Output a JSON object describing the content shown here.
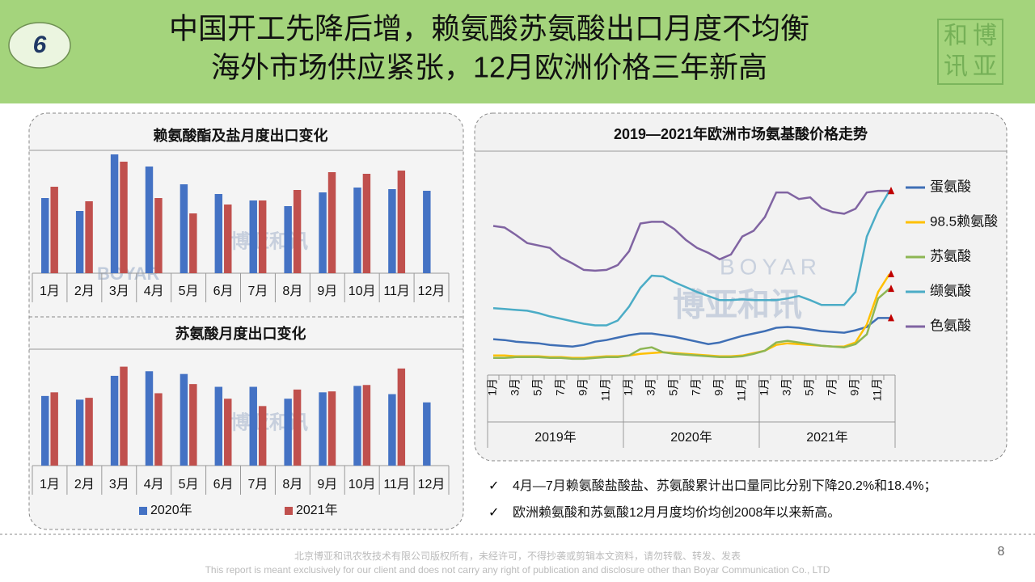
{
  "header": {
    "number": "6",
    "title_lines": [
      "中国开工先降后增，赖氨酸苏氨酸出口月度不均衡",
      "海外市场供应紧张，12月欧洲价格三年新高"
    ],
    "logo": [
      "和",
      "博",
      "讯",
      "亚"
    ]
  },
  "watermark": {
    "en": "BOYAR",
    "cn": "博亚和讯"
  },
  "chart_data": [
    {
      "type": "bar",
      "title": "赖氨酸酯及盐月度出口变化",
      "categories": [
        "1月",
        "2月",
        "3月",
        "4月",
        "5月",
        "6月",
        "7月",
        "8月",
        "9月",
        "10月",
        "11月",
        "12月"
      ],
      "ylim": [
        0,
        150
      ],
      "series": [
        {
          "name": "2020年",
          "color": "#4472c4",
          "values": [
            93,
            77,
            147,
            132,
            110,
            98,
            90,
            83,
            100,
            106,
            104,
            102
          ]
        },
        {
          "name": "2021年",
          "color": "#c0504d",
          "values": [
            107,
            89,
            138,
            93,
            74,
            85,
            90,
            103,
            125,
            123,
            127,
            null
          ]
        }
      ]
    },
    {
      "type": "bar",
      "title": "苏氨酸月度出口变化",
      "categories": [
        "1月",
        "2月",
        "3月",
        "4月",
        "5月",
        "6月",
        "7月",
        "8月",
        "9月",
        "10月",
        "11月",
        "12月"
      ],
      "ylim": [
        0,
        120
      ],
      "series": [
        {
          "name": "2020年",
          "color": "#4472c4",
          "values": [
            76,
            72,
            98,
            103,
            100,
            86,
            86,
            73,
            80,
            87,
            78,
            69
          ]
        },
        {
          "name": "2021年",
          "color": "#c0504d",
          "values": [
            80,
            74,
            108,
            79,
            89,
            73,
            65,
            83,
            81,
            88,
            106,
            null
          ]
        }
      ]
    },
    {
      "type": "line",
      "title": "2019—2021年欧洲市场氨基酸价格走势",
      "ylim": [
        0,
        240
      ],
      "categories": [
        "1月",
        null,
        "3月",
        null,
        "5月",
        null,
        "7月",
        null,
        "9月",
        null,
        "11月",
        null,
        "1月",
        null,
        "3月",
        null,
        "5月",
        null,
        "7月",
        null,
        "9月",
        null,
        "11月",
        null,
        "1月",
        null,
        "3月",
        null,
        "5月",
        null,
        "7月",
        null,
        "9月",
        null,
        "11月",
        null
      ],
      "groups": [
        "2019年",
        "2020年",
        "2021年"
      ],
      "series": [
        {
          "name": "蛋氨酸",
          "color": "#3f6fb5",
          "values": [
            42,
            41,
            39,
            38,
            37,
            35,
            34,
            33,
            35,
            39,
            41,
            44,
            47,
            49,
            49,
            47,
            45,
            42,
            39,
            36,
            38,
            42,
            46,
            49,
            52,
            56,
            57,
            56,
            54,
            52,
            51,
            50,
            53,
            57,
            68,
            68
          ]
        },
        {
          "name": "98.5赖氨酸",
          "color": "#ffc000",
          "values": [
            22,
            22,
            21,
            21,
            21,
            20,
            20,
            19,
            19,
            20,
            21,
            21,
            22,
            24,
            25,
            26,
            25,
            24,
            23,
            22,
            21,
            21,
            22,
            25,
            28,
            35,
            37,
            36,
            35,
            34,
            33,
            33,
            38,
            60,
            100,
            122
          ]
        },
        {
          "name": "苏氨酸",
          "color": "#8db654",
          "values": [
            19,
            19,
            20,
            20,
            20,
            19,
            19,
            18,
            18,
            19,
            20,
            20,
            22,
            30,
            32,
            26,
            24,
            23,
            22,
            21,
            20,
            20,
            21,
            24,
            28,
            38,
            40,
            38,
            36,
            34,
            33,
            32,
            36,
            48,
            92,
            104
          ]
        },
        {
          "name": "缬氨酸",
          "color": "#4bacc6",
          "values": [
            80,
            79,
            78,
            77,
            74,
            70,
            67,
            64,
            61,
            59,
            59,
            65,
            82,
            105,
            120,
            119,
            112,
            106,
            100,
            95,
            90,
            90,
            91,
            90,
            90,
            90,
            92,
            95,
            90,
            84,
            84,
            84,
            100,
            168,
            200,
            224
          ]
        },
        {
          "name": "色氨酸",
          "color": "#8064a2",
          "values": [
            181,
            179,
            170,
            160,
            157,
            154,
            142,
            135,
            127,
            126,
            127,
            133,
            150,
            184,
            186,
            186,
            177,
            164,
            154,
            148,
            140,
            146,
            168,
            175,
            192,
            222,
            222,
            214,
            216,
            203,
            198,
            196,
            202,
            222,
            224,
            224
          ]
        }
      ]
    }
  ],
  "notes": [
    "4月—7月赖氨酸盐酸盐、苏氨酸累计出口量同比分别下降20.2%和18.4%；",
    "欧洲赖氨酸和苏氨酸12月月度均价均创2008年以来新高。"
  ],
  "footer": {
    "cn": "北京博亚和讯农牧技术有限公司版权所有，未经许可，不得抄袭或剪辑本文资料，请勿转载、转发、发表",
    "en": "This report is meant exclusively for our client and does not carry any right of publication and disclosure other than Boyar Communication Co., LTD",
    "page": "8"
  }
}
